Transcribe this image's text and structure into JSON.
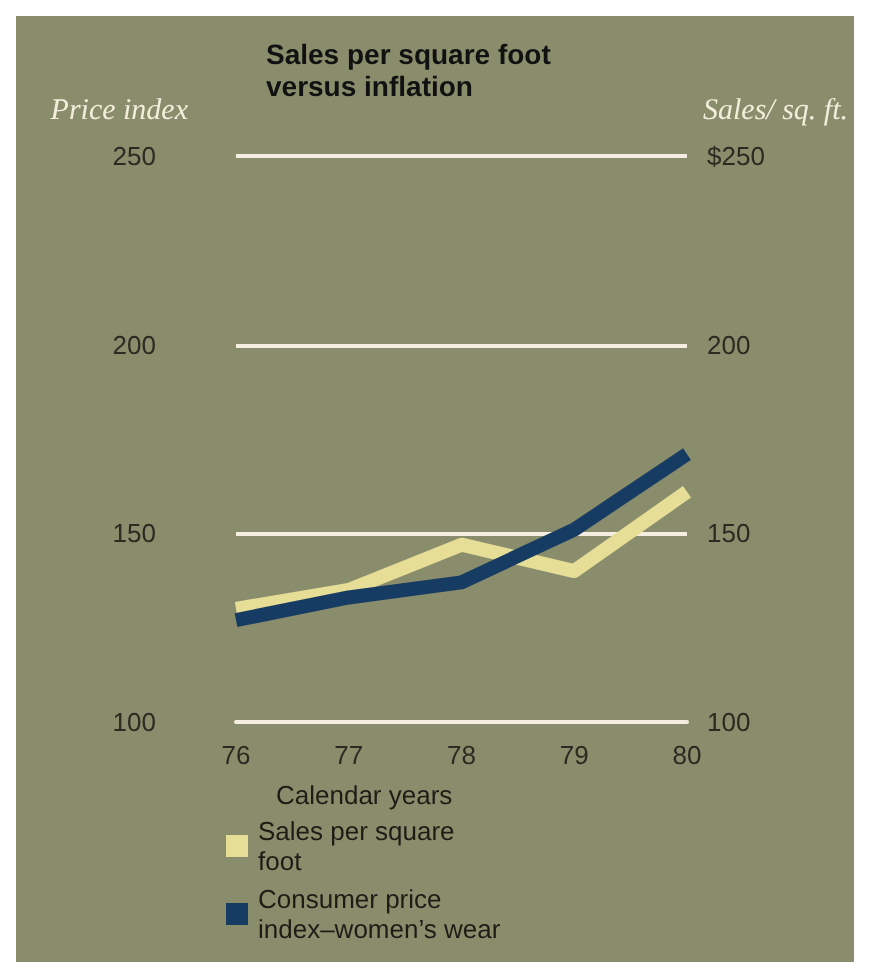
{
  "chart_data": {
    "type": "line",
    "title": "Sales per square foot versus inflation",
    "xlabel": "Calendar years",
    "ylabel": "Price index",
    "y2label": "Sales/ sq. ft.",
    "categories": [
      "76",
      "77",
      "78",
      "79",
      "80"
    ],
    "series": [
      {
        "name": "Sales per square foot",
        "color": "#e6dd96",
        "values": [
          130,
          135,
          147,
          140,
          161
        ]
      },
      {
        "name": "Consumer price index–women’s wear",
        "color": "#173c63",
        "values": [
          127,
          133,
          137,
          151,
          171
        ]
      }
    ],
    "ylim": [
      100,
      250
    ],
    "yticks": [
      100,
      150,
      200,
      250
    ],
    "y2lim": [
      100,
      250
    ],
    "y2ticks": [
      100,
      150,
      200,
      {
        "value": 250,
        "label": "$250"
      }
    ],
    "grid": "y",
    "legend": "bottom left",
    "marker": "none",
    "line_style": "solid"
  }
}
